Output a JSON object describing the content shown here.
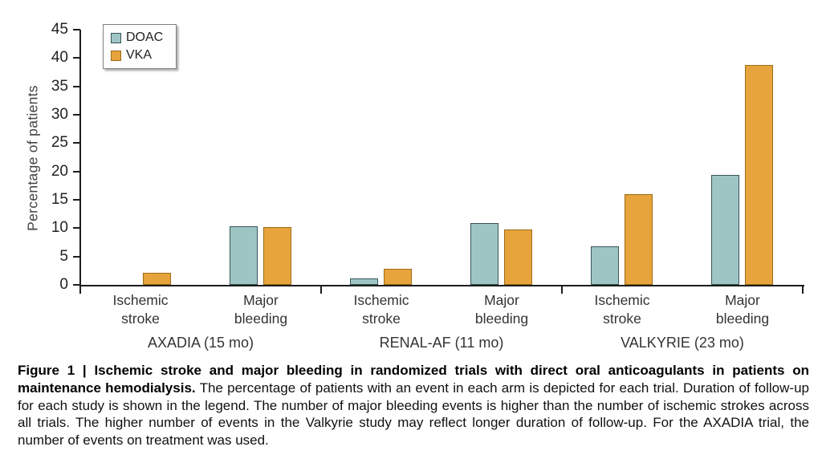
{
  "figure": {
    "caption_bold": "Figure 1 | Ischemic stroke and major bleeding in randomized trials with direct oral anticoagulants in patients on maintenance hemodialysis.",
    "caption_text": " The percentage of patients with an event in each arm is depicted for each trial. Duration of follow-up for each study is shown in the legend. The number of major bleeding events is higher than the number of ischemic strokes across all trials. The higher number of events in the Valkyrie study may reflect longer duration of follow-up. For the AXADIA trial, the number of events on treatment was used."
  },
  "chart_data": {
    "type": "bar",
    "title": "",
    "ylabel": "Percentage of patients",
    "xlabel": "",
    "ylim": [
      0,
      45
    ],
    "ytick_step": 5,
    "grid": false,
    "legend_position": "top-left",
    "categories": [
      "Ischemic stroke",
      "Major bleeding"
    ],
    "legend": [
      {
        "label": "DOAC",
        "fill": "#9dc5c4",
        "border": "#3a5456"
      },
      {
        "label": "VKA",
        "fill": "#e7a43c",
        "border": "#9c6b16"
      }
    ],
    "groups": [
      {
        "label": "AXADIA (15 mo)",
        "series": [
          {
            "name": "DOAC",
            "values": [
              0,
              10.4
            ]
          },
          {
            "name": "VKA",
            "values": [
              2.1,
              10.2
            ]
          }
        ]
      },
      {
        "label": "RENAL-AF (11 mo)",
        "series": [
          {
            "name": "DOAC",
            "values": [
              1.2,
              10.9
            ]
          },
          {
            "name": "VKA",
            "values": [
              2.8,
              9.8
            ]
          }
        ]
      },
      {
        "label": "VALKYRIE (23 mo)",
        "series": [
          {
            "name": "DOAC",
            "values": [
              6.8,
              19.4
            ]
          },
          {
            "name": "VKA",
            "values": [
              16.0,
              38.8
            ]
          }
        ]
      }
    ],
    "colors": {
      "axis": "#1c1c1c",
      "text": "#333333"
    }
  }
}
